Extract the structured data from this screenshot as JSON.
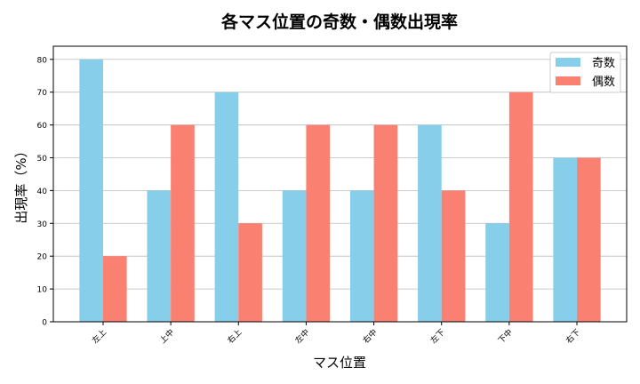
{
  "chart_data": {
    "type": "bar",
    "title": "各マス位置の奇数・偶数出現率",
    "xlabel": "マス位置",
    "ylabel": "出現率（%）",
    "categories": [
      "左上",
      "上中",
      "右上",
      "左中",
      "右中",
      "左下",
      "下中",
      "右下"
    ],
    "series": [
      {
        "name": "奇数",
        "values": [
          80,
          40,
          70,
          40,
          40,
          60,
          30,
          50
        ],
        "color": "#87ceeb"
      },
      {
        "name": "偶数",
        "values": [
          20,
          60,
          30,
          60,
          60,
          40,
          70,
          50
        ],
        "color": "#fa8072"
      }
    ],
    "ylim": [
      0,
      84
    ],
    "yticks": [
      0,
      10,
      20,
      30,
      40,
      50,
      60,
      70,
      80
    ],
    "grid": "y",
    "legend": "top-right"
  }
}
